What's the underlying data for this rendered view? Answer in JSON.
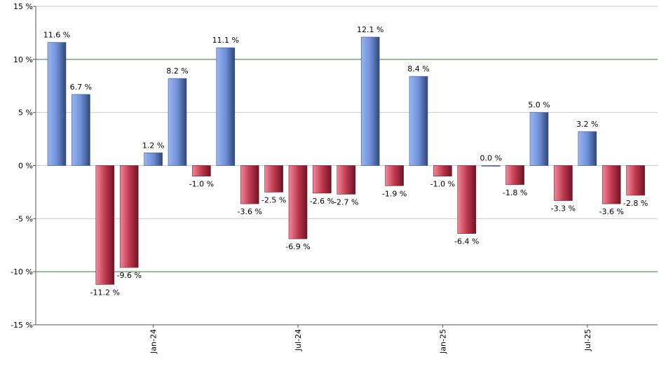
{
  "chart_data": {
    "type": "bar",
    "title": "",
    "xlabel": "",
    "ylabel": "",
    "ylim": [
      -15,
      15
    ],
    "y_ticks": [
      -15,
      -10,
      -5,
      0,
      5,
      10,
      15
    ],
    "y_tick_labels": [
      "-15 %",
      "-10 %",
      "-5 %",
      "0 %",
      "5 %",
      "10 %",
      "15 %"
    ],
    "y_unit_suffix": " %",
    "highlight_gridlines": [
      10,
      -10
    ],
    "x_axis_labels": [
      {
        "label": "Jan-24",
        "index": 4
      },
      {
        "label": "Jul-24",
        "index": 10
      },
      {
        "label": "Jan-25",
        "index": 16
      },
      {
        "label": "Jul-25",
        "index": 22
      }
    ],
    "values": [
      11.6,
      6.7,
      -11.2,
      -9.6,
      1.2,
      8.2,
      -1.0,
      11.1,
      -3.6,
      -2.5,
      -6.9,
      -2.6,
      -2.7,
      12.1,
      -1.9,
      8.4,
      -1.0,
      -6.4,
      0.0,
      -1.8,
      5.0,
      -3.3,
      3.2,
      -3.6,
      -2.8
    ],
    "data_labels": [
      "11.6 %",
      "6.7 %",
      "-11.2 %",
      "-9.6 %",
      "1.2 %",
      "8.2 %",
      "-1.0 %",
      "11.1 %",
      "-3.6 %",
      "-2.5 %",
      "-6.9 %",
      "-2.6 %",
      "-2.7 %",
      "12.1 %",
      "-1.9 %",
      "8.4 %",
      "-1.0 %",
      "-6.4 %",
      "0.0 %",
      "-1.8 %",
      "5.0 %",
      "-3.3 %",
      "3.2 %",
      "-3.6 %",
      "-2.8 %"
    ],
    "grid": true,
    "legend": "none",
    "colors": {
      "positive": "#6f8fd8",
      "negative": "#c0394f",
      "grid": "#c8c8c8",
      "highlight_grid": "#2e7d32",
      "axis": "#555555"
    }
  }
}
